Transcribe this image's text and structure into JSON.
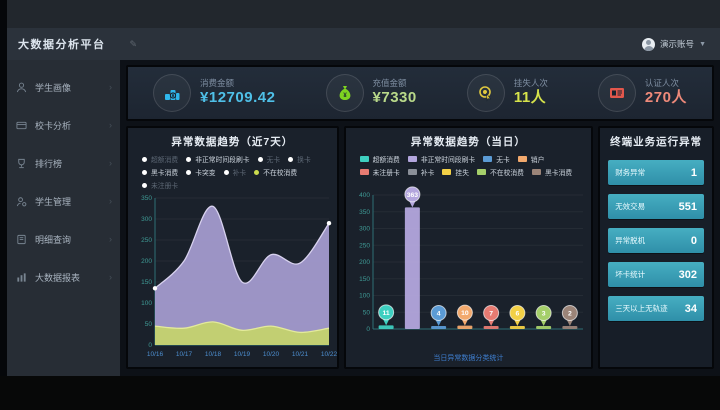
{
  "header": {
    "app_title": "大数据分析平台",
    "user_name": "演示账号"
  },
  "sidebar": {
    "items": [
      {
        "label": "学生画像"
      },
      {
        "label": "校卡分析"
      },
      {
        "label": "排行榜"
      },
      {
        "label": "学生管理"
      },
      {
        "label": "明细查询"
      },
      {
        "label": "大数据报表"
      }
    ]
  },
  "kpis": [
    {
      "label": "消费金额",
      "value": "¥12709.42",
      "color": "#4fc0e8"
    },
    {
      "label": "充值金额",
      "value": "¥7330",
      "color": "#b9d98a"
    },
    {
      "label": "挂失人次",
      "value": "11人",
      "color": "#d6e34b"
    },
    {
      "label": "认证人次",
      "value": "270人",
      "color": "#ef8a7a"
    }
  ],
  "kpi_icon_colors": [
    "#2fb7ec",
    "#7ed321",
    "#e0c93f",
    "#e2574c"
  ],
  "side_panel": {
    "title": "终端业务运行异常",
    "rows": [
      {
        "label": "财务异常",
        "value": "1"
      },
      {
        "label": "无效交易",
        "value": "551"
      },
      {
        "label": "异常脱机",
        "value": "0"
      },
      {
        "label": "坏卡统计",
        "value": "302"
      },
      {
        "label": "三天以上无轨迹",
        "value": "34"
      }
    ]
  },
  "chart_data": [
    {
      "type": "area",
      "title": "异常数据趋势（近7天）",
      "x": [
        "10/16",
        "10/17",
        "10/18",
        "10/19",
        "10/20",
        "10/21",
        "10/22"
      ],
      "series": [
        {
          "name": "非正常时间段刷卡",
          "values": [
            135,
            200,
            330,
            150,
            215,
            195,
            290
          ],
          "fill": "#a79ed2",
          "line": "#d8d2ef"
        },
        {
          "name": "不在校消费",
          "values": [
            45,
            40,
            55,
            35,
            45,
            30,
            40
          ],
          "fill": "#c6d46a",
          "line": "#e3ea9b"
        }
      ],
      "ylim": [
        0,
        350
      ],
      "ytick": 50,
      "grid": true,
      "legend_position": "top",
      "legend": [
        {
          "label": "超额消费",
          "color": "#ffffff",
          "dim": true
        },
        {
          "label": "非正常时间段刷卡",
          "color": "#ffffff",
          "dim": false
        },
        {
          "label": "无卡",
          "color": "#ffffff",
          "dim": true
        },
        {
          "label": "换卡",
          "color": "#ffffff",
          "dim": true
        },
        {
          "label": "黑卡消费",
          "color": "#ffffff",
          "dim": false
        },
        {
          "label": "卡突变",
          "color": "#ffffff",
          "dim": false
        },
        {
          "label": "补卡",
          "color": "#ffffff",
          "dim": true
        },
        {
          "label": "不在校消费",
          "color": "#cbdc4e",
          "dim": false
        },
        {
          "label": "未注册卡",
          "color": "#ffffff",
          "dim": true
        }
      ]
    },
    {
      "type": "bar",
      "title": "异常数据趋势（当日）",
      "categories": [
        "超额消费",
        "非正常时间段刷卡",
        "无卡",
        "销户",
        "未注册卡",
        "挂失",
        "不在校消费",
        "黑卡消费"
      ],
      "values": [
        11,
        363,
        4,
        10,
        7,
        6,
        3,
        2
      ],
      "colors": [
        "#3ecfc0",
        "#b3a6dd",
        "#5b9bd5",
        "#f2a96d",
        "#e77b72",
        "#f2d046",
        "#a5cf6a",
        "#9b8478"
      ],
      "ylim": [
        0,
        400
      ],
      "ytick": 50,
      "grid": true,
      "caption": "当日异常数据分类统计",
      "legend": [
        {
          "label": "超额消费",
          "color": "#3ecfc0"
        },
        {
          "label": "非正常时间段刷卡",
          "color": "#b3a6dd"
        },
        {
          "label": "无卡",
          "color": "#5b9bd5"
        },
        {
          "label": "销户",
          "color": "#f2a96d"
        },
        {
          "label": "未注册卡",
          "color": "#e77b72"
        },
        {
          "label": "补卡",
          "color": "#8a8f98"
        },
        {
          "label": "挂失",
          "color": "#f2d046"
        },
        {
          "label": "不在校消费",
          "color": "#a5cf6a"
        },
        {
          "label": "黑卡消费",
          "color": "#9b8478"
        }
      ]
    }
  ]
}
